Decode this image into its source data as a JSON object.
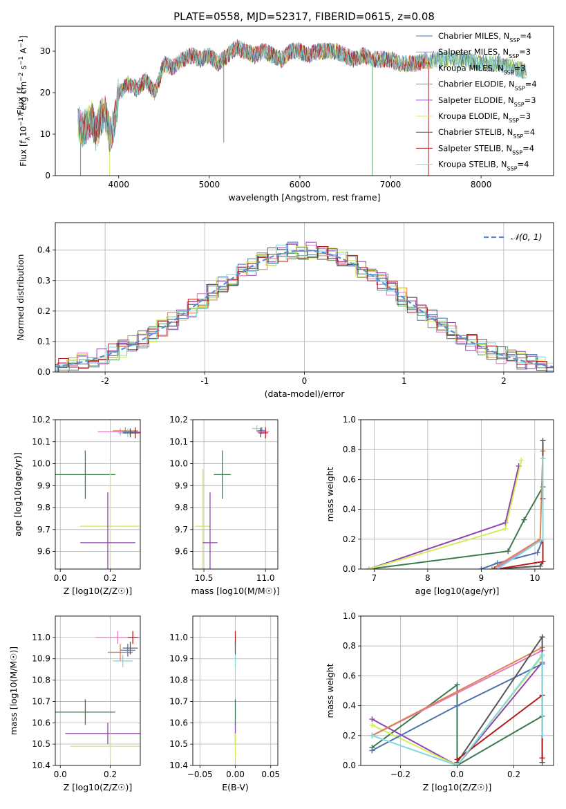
{
  "title": "PLATE=0558, MJD=52317, FIBERID=0615, z=0.08",
  "colors": {
    "chabrier_miles": "#4c72b0",
    "salpeter_miles": "#e377c2",
    "kroupa_miles": "#dd8452",
    "chabrier_elodie": "#55a868",
    "salpeter_elodie": "#8e44ad",
    "kroupa_elodie": "#d4ec5a",
    "chabrier_stelib": "#555555",
    "salpeter_stelib": "#b71c1c",
    "kroupa_stelib": "#80d8e0",
    "sspDark": "#3b7a4f",
    "normal": "#5b8bd9"
  },
  "legend_spectrum": [
    {
      "text": "Chabrier MILES, N",
      "sub": "SSP",
      "suffix": "=4",
      "color": "#4c72b0"
    },
    {
      "text": "Salpeter MILES, N",
      "sub": "SSP",
      "suffix": "=3",
      "color": "#e377c2"
    },
    {
      "text": "Kroupa MILES, N",
      "sub": "SSP",
      "suffix": "=3",
      "color": "#dd8452"
    },
    {
      "text": "Chabrier ELODIE, N",
      "sub": "SSP",
      "suffix": "=4",
      "color": "#55a868"
    },
    {
      "text": "Salpeter ELODIE, N",
      "sub": "SSP",
      "suffix": "=3",
      "color": "#8e44ad"
    },
    {
      "text": "Kroupa ELODIE, N",
      "sub": "SSP",
      "suffix": "=3",
      "color": "#d4ec5a"
    },
    {
      "text": "Chabrier STELIB, N",
      "sub": "SSP",
      "suffix": "=4",
      "color": "#555555"
    },
    {
      "text": "Salpeter STELIB, N",
      "sub": "SSP",
      "suffix": "=4",
      "color": "#b71c1c"
    },
    {
      "text": "Kroupa STELIB, N",
      "sub": "SSP",
      "suffix": "=4",
      "color": "#80d8e0"
    }
  ],
  "legend_hist": {
    "text": "𝒩(0, 1)"
  },
  "chart_data": [
    {
      "id": "spectrum",
      "type": "line",
      "xlabel": "wavelength [Angstrom, rest frame]",
      "ylabel": "Flux [f",
      "ylabel_parts": [
        "Flux [f",
        "λ",
        "10",
        "−17",
        " erg cm",
        "−2",
        " s",
        "−1",
        " A",
        "−1",
        "]"
      ],
      "xlim": [
        3300,
        8800
      ],
      "ylim": [
        0,
        36
      ],
      "xticks": [
        4000,
        5000,
        6000,
        7000,
        8000
      ],
      "yticks": [
        0,
        10,
        20,
        30
      ],
      "envelope_x": [
        3550,
        3600,
        3650,
        3700,
        3750,
        3800,
        3850,
        3900,
        3950,
        4000,
        4100,
        4200,
        4300,
        4400,
        4500,
        4600,
        4700,
        4800,
        4900,
        5000,
        5100,
        5200,
        5300,
        5400,
        5500,
        5600,
        5700,
        5800,
        5900,
        6000,
        6100,
        6200,
        6300,
        6400,
        6500,
        6600,
        6700,
        6800,
        6900,
        7000,
        7100,
        7200,
        7300,
        7400,
        7600,
        7800,
        8000,
        8200,
        8400,
        8500
      ],
      "envelope_y": [
        13,
        11,
        12,
        14,
        10,
        14,
        15,
        10,
        12,
        20,
        22,
        21,
        23,
        20,
        27,
        26,
        28,
        29,
        28,
        29,
        27,
        29,
        31,
        30,
        29,
        30,
        29,
        28,
        30,
        30,
        29,
        30,
        30,
        30,
        29,
        28,
        29,
        28,
        28,
        28,
        27,
        27,
        27,
        28,
        28,
        28,
        27,
        27,
        26,
        25
      ]
    },
    {
      "id": "residual-histogram",
      "type": "bar",
      "xlabel": "(data-model)/error",
      "ylabel": "Normed distribution",
      "xlim": [
        -2.5,
        2.5
      ],
      "ylim": [
        0,
        0.49
      ],
      "xticks": [
        -2,
        -1,
        0,
        1,
        2
      ],
      "yticks": [
        0.0,
        0.1,
        0.2,
        0.3,
        0.4
      ],
      "bin_width": 0.1,
      "reference": "N(0,1)",
      "grid": true
    },
    {
      "id": "age-vs-Z",
      "type": "scatter",
      "xlabel": "Z [log10(Z/Z☉)]",
      "ylabel": "age [log10(age/yr)]",
      "xlim": [
        -0.02,
        0.32
      ],
      "ylim": [
        9.52,
        10.2
      ],
      "xticks": [
        0.0,
        0.2
      ],
      "yticks": [
        9.6,
        9.7,
        9.8,
        9.9,
        10.0,
        10.1,
        10.2
      ],
      "points": [
        {
          "series": "Chabrier ELODIE",
          "x": 0.1,
          "xerr": 0.12,
          "y": 9.95,
          "yerr": 0.11,
          "color": "#3b7a4f"
        },
        {
          "series": "Kroupa ELODIE",
          "x": 0.2,
          "xerr": 0.12,
          "y": 9.715,
          "yerr": 0.25,
          "color": "#d4ec5a"
        },
        {
          "series": "Salpeter ELODIE",
          "x": 0.19,
          "xerr": 0.11,
          "y": 9.64,
          "yerr": 0.23,
          "color": "#8e44ad"
        },
        {
          "series": "Salpeter MILES",
          "x": 0.24,
          "xerr": 0.09,
          "y": 10.145,
          "yerr": 0.015,
          "color": "#e377c2"
        },
        {
          "series": "Kroupa MILES",
          "x": 0.26,
          "xerr": 0.05,
          "y": 10.15,
          "yerr": 0.015,
          "color": "#dd8452"
        },
        {
          "series": "Kroupa STELIB",
          "x": 0.27,
          "xerr": 0.04,
          "y": 10.14,
          "yerr": 0.02,
          "color": "#80d8e0"
        },
        {
          "series": "Chabrier MILES",
          "x": 0.28,
          "xerr": 0.03,
          "y": 10.145,
          "yerr": 0.015,
          "color": "#4c72b0"
        },
        {
          "series": "Chabrier STELIB",
          "x": 0.28,
          "xerr": 0.03,
          "y": 10.14,
          "yerr": 0.02,
          "color": "#555555"
        },
        {
          "series": "Salpeter STELIB",
          "x": 0.3,
          "xerr": 0.02,
          "y": 10.14,
          "yerr": 0.025,
          "color": "#b71c1c"
        }
      ]
    },
    {
      "id": "age-vs-mass",
      "type": "scatter",
      "xlabel": "mass [log10(M/M☉)]",
      "ylabel": "",
      "xlim": [
        10.41,
        11.1
      ],
      "ylim": [
        9.52,
        10.2
      ],
      "xticks": [
        10.5,
        11.0
      ],
      "yticks": [
        9.6,
        9.7,
        9.8,
        9.9,
        10.0,
        10.1,
        10.2
      ],
      "points": [
        {
          "series": "Chabrier ELODIE",
          "x": 10.65,
          "xerr": 0.07,
          "y": 9.95,
          "yerr": 0.11,
          "color": "#3b7a4f"
        },
        {
          "series": "Kroupa ELODIE",
          "x": 10.49,
          "xerr": 0.06,
          "y": 9.715,
          "yerr": 0.26,
          "color": "#d4ec5a"
        },
        {
          "series": "Salpeter ELODIE",
          "x": 10.55,
          "xerr": 0.06,
          "y": 9.64,
          "yerr": 0.23,
          "color": "#8e44ad"
        },
        {
          "series": "Kroupa STELIB",
          "x": 10.93,
          "xerr": 0.04,
          "y": 10.16,
          "yerr": 0.015,
          "color": "#80d8e0"
        },
        {
          "series": "Kroupa MILES",
          "x": 10.96,
          "xerr": 0.03,
          "y": 10.15,
          "yerr": 0.015,
          "color": "#dd8452"
        },
        {
          "series": "Chabrier MILES",
          "x": 10.97,
          "xerr": 0.03,
          "y": 10.15,
          "yerr": 0.015,
          "color": "#4c72b0"
        },
        {
          "series": "Chabrier STELIB",
          "x": 10.96,
          "xerr": 0.02,
          "y": 10.14,
          "yerr": 0.02,
          "color": "#555555"
        },
        {
          "series": "Salpeter MILES",
          "x": 10.98,
          "xerr": 0.05,
          "y": 10.145,
          "yerr": 0.01,
          "color": "#e377c2"
        },
        {
          "series": "Salpeter STELIB",
          "x": 11.0,
          "xerr": 0.02,
          "y": 10.14,
          "yerr": 0.025,
          "color": "#b71c1c"
        }
      ]
    },
    {
      "id": "massweight-vs-age",
      "type": "line",
      "xlabel": "age [log10(age/yr)]",
      "ylabel": "mass weight",
      "xlim": [
        6.75,
        10.35
      ],
      "ylim": [
        0,
        1.0
      ],
      "xticks": [
        7,
        8,
        9,
        10
      ],
      "yticks": [
        0.0,
        0.2,
        0.4,
        0.6,
        0.8,
        1.0
      ],
      "series": [
        {
          "name": "Chabrier ELODIE",
          "color": "#3b7a4f",
          "x": [
            6.9,
            9.5,
            9.8,
            10.15
          ],
          "y": [
            0.0,
            0.12,
            0.33,
            0.55
          ]
        },
        {
          "name": "Salpeter ELODIE",
          "color": "#8e44ad",
          "x": [
            6.9,
            9.45,
            9.7
          ],
          "y": [
            0.0,
            0.31,
            0.69
          ]
        },
        {
          "name": "Kroupa ELODIE",
          "color": "#d4ec5a",
          "x": [
            6.9,
            9.45,
            9.75
          ],
          "y": [
            0.0,
            0.27,
            0.73
          ]
        },
        {
          "name": "Chabrier MILES",
          "color": "#4c72b0",
          "x": [
            9.0,
            9.3,
            10.05,
            10.15
          ],
          "y": [
            0.0,
            0.04,
            0.11,
            0.2
          ]
        },
        {
          "name": "Salpeter MILES",
          "color": "#e377c2",
          "x": [
            9.25,
            10.1,
            10.15
          ],
          "y": [
            0.0,
            0.19,
            0.2
          ]
        },
        {
          "name": "Kroupa MILES",
          "color": "#dd8452",
          "x": [
            9.2,
            10.1,
            10.15
          ],
          "y": [
            0.0,
            0.2,
            0.79
          ]
        },
        {
          "name": "Chabrier STELIB",
          "color": "#555555",
          "x": [
            9.25,
            10.1,
            10.15,
            10.15
          ],
          "y": [
            0.0,
            0.02,
            0.05,
            0.86
          ]
        },
        {
          "name": "Salpeter STELIB",
          "color": "#b71c1c",
          "x": [
            9.3,
            10.15,
            10.15
          ],
          "y": [
            0.0,
            0.05,
            0.47
          ]
        },
        {
          "name": "Kroupa STELIB",
          "color": "#80d8e0",
          "x": [
            9.3,
            10.15,
            10.15
          ],
          "y": [
            0.0,
            0.2,
            0.74
          ]
        }
      ]
    },
    {
      "id": "mass-vs-Z",
      "type": "scatter",
      "xlabel": "Z [log10(Z/Z☉)]",
      "ylabel": "mass [log10(M/M☉)]",
      "xlim": [
        -0.02,
        0.32
      ],
      "ylim": [
        10.4,
        11.1
      ],
      "xticks": [
        0.0,
        0.2
      ],
      "yticks": [
        10.4,
        10.5,
        10.6,
        10.7,
        10.8,
        10.9,
        11.0
      ],
      "points": [
        {
          "series": "Chabrier ELODIE",
          "x": 0.1,
          "xerr": 0.12,
          "y": 10.65,
          "yerr": 0.06,
          "color": "#3b7a4f"
        },
        {
          "series": "Salpeter ELODIE",
          "x": 0.19,
          "xerr": 0.17,
          "y": 10.55,
          "yerr": 0.05,
          "color": "#8e44ad"
        },
        {
          "series": "Kroupa ELODIE",
          "x": 0.2,
          "xerr": 0.16,
          "y": 10.49,
          "yerr": 0.06,
          "color": "#d4ec5a"
        },
        {
          "series": "Salpeter MILES",
          "x": 0.23,
          "xerr": 0.09,
          "y": 11.0,
          "yerr": 0.03,
          "color": "#e377c2"
        },
        {
          "series": "Kroupa MILES",
          "x": 0.24,
          "xerr": 0.05,
          "y": 10.93,
          "yerr": 0.04,
          "color": "#dd8452"
        },
        {
          "series": "Kroupa STELIB",
          "x": 0.25,
          "xerr": 0.04,
          "y": 10.89,
          "yerr": 0.03,
          "color": "#80d8e0"
        },
        {
          "series": "Chabrier MILES",
          "x": 0.27,
          "xerr": 0.03,
          "y": 10.94,
          "yerr": 0.03,
          "color": "#4c72b0"
        },
        {
          "series": "Chabrier STELIB",
          "x": 0.28,
          "xerr": 0.03,
          "y": 10.95,
          "yerr": 0.03,
          "color": "#555555"
        },
        {
          "series": "Salpeter STELIB",
          "x": 0.29,
          "xerr": 0.02,
          "y": 11.0,
          "yerr": 0.03,
          "color": "#b71c1c"
        }
      ]
    },
    {
      "id": "mass-vs-EBV",
      "type": "scatter",
      "xlabel": "E(B-V)",
      "ylabel": "",
      "xlim": [
        -0.06,
        0.06
      ],
      "ylim": [
        10.4,
        11.1
      ],
      "xticks": [
        -0.05,
        0.0,
        0.05
      ],
      "xtick_labels": [
        "−0.05",
        "0.00",
        "0.05"
      ],
      "yticks": [
        10.4,
        10.5,
        10.6,
        10.7,
        10.8,
        10.9,
        11.0
      ],
      "points": [
        {
          "series": "Salpeter STELIB",
          "x": 0.0,
          "xerr": 0.0,
          "y": 11.0,
          "yerr": 0.03,
          "color": "#b71c1c"
        },
        {
          "series": "Chabrier STELIB",
          "x": 0.0,
          "xerr": 0.0,
          "y": 10.95,
          "yerr": 0.03,
          "color": "#555555"
        },
        {
          "series": "Kroupa STELIB",
          "x": 0.0,
          "xerr": 0.0,
          "y": 10.89,
          "yerr": 0.03,
          "color": "#80d8e0"
        },
        {
          "series": "Chabrier ELODIE",
          "x": 0.0,
          "xerr": 0.0,
          "y": 10.65,
          "yerr": 0.06,
          "color": "#3b7a4f"
        },
        {
          "series": "Salpeter ELODIE",
          "x": 0.0,
          "xerr": 0.0,
          "y": 10.55,
          "yerr": 0.05,
          "color": "#8e44ad"
        },
        {
          "series": "Kroupa ELODIE",
          "x": 0.0,
          "xerr": 0.0,
          "y": 10.49,
          "yerr": 0.06,
          "color": "#d4ec5a"
        }
      ]
    },
    {
      "id": "massweight-vs-Z",
      "type": "line",
      "xlabel": "Z [log10(Z/Z☉)]",
      "ylabel": "mass weight",
      "xlim": [
        -0.34,
        0.34
      ],
      "ylim": [
        0,
        1.0
      ],
      "xticks": [
        -0.2,
        0.0,
        0.2
      ],
      "xtick_labels": [
        "−0.2",
        "0.0",
        "0.2"
      ],
      "yticks": [
        0.0,
        0.2,
        0.4,
        0.6,
        0.8,
        1.0
      ],
      "series": [
        {
          "name": "Chabrier ELODIE",
          "color": "#3b7a4f",
          "x": [
            -0.3,
            0.0,
            0.0,
            0.3
          ],
          "y": [
            0.12,
            0.54,
            0.0,
            0.33
          ]
        },
        {
          "name": "Salpeter ELODIE",
          "color": "#8e44ad",
          "x": [
            -0.3,
            0.0,
            0.3
          ],
          "y": [
            0.31,
            0.0,
            0.69
          ]
        },
        {
          "name": "Kroupa ELODIE",
          "color": "#d4ec5a",
          "x": [
            -0.3,
            0.0,
            0.3
          ],
          "y": [
            0.27,
            0.0,
            0.73
          ]
        },
        {
          "name": "Chabrier MILES",
          "color": "#4c72b0",
          "x": [
            -0.3,
            0.0,
            0.3
          ],
          "y": [
            0.1,
            0.4,
            0.68
          ]
        },
        {
          "name": "Salpeter MILES",
          "color": "#e377c2",
          "x": [
            -0.3,
            0.3
          ],
          "y": [
            0.2,
            0.77
          ]
        },
        {
          "name": "Kroupa MILES",
          "color": "#dd8452",
          "x": [
            -0.3,
            0.3
          ],
          "y": [
            0.2,
            0.79
          ]
        },
        {
          "name": "Chabrier STELIB",
          "color": "#555555",
          "x": [
            0.0,
            0.3,
            0.3
          ],
          "y": [
            0.02,
            0.86,
            0.02
          ]
        },
        {
          "name": "Salpeter STELIB",
          "color": "#b71c1c",
          "x": [
            0.0,
            0.3,
            0.3
          ],
          "y": [
            0.04,
            0.47,
            0.05
          ]
        },
        {
          "name": "Kroupa STELIB",
          "color": "#80d8e0",
          "x": [
            -0.3,
            0.0,
            0.3,
            0.3
          ],
          "y": [
            0.2,
            0.0,
            0.74,
            0.2
          ]
        }
      ]
    }
  ]
}
